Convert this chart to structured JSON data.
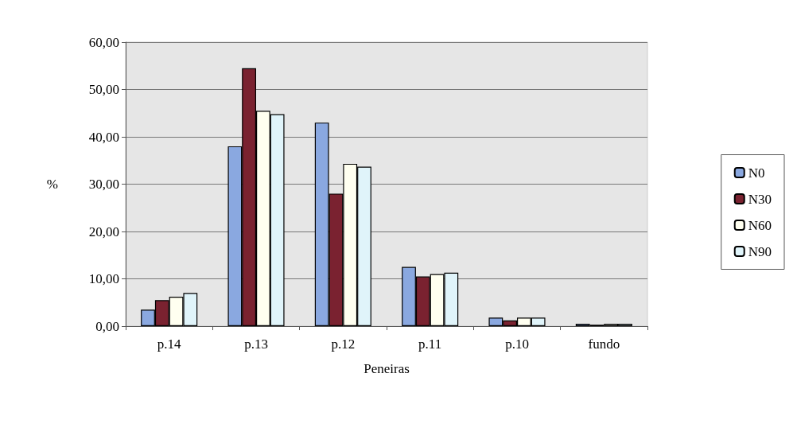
{
  "chart_data": {
    "type": "bar",
    "xlabel": "Peneiras",
    "ylabel": "%",
    "categories": [
      "p.14",
      "p.13",
      "p.12",
      "p.11",
      "p.10",
      "fundo"
    ],
    "series": [
      {
        "name": "N0",
        "color": "#8aa8e0",
        "values": [
          3.5,
          38.0,
          43.0,
          12.5,
          1.8,
          0.5
        ]
      },
      {
        "name": "N30",
        "color": "#7a2230",
        "values": [
          5.5,
          54.5,
          28.0,
          10.5,
          1.2,
          0.3
        ]
      },
      {
        "name": "N60",
        "color": "#fffff0",
        "values": [
          6.2,
          45.5,
          34.3,
          11.0,
          1.8,
          0.5
        ]
      },
      {
        "name": "N90",
        "color": "#e0f4fa",
        "values": [
          7.0,
          44.8,
          33.7,
          11.3,
          1.8,
          0.5
        ]
      }
    ],
    "ylim": [
      0,
      60
    ],
    "yticks": [
      {
        "value": 0,
        "label": "0,00"
      },
      {
        "value": 10,
        "label": "10,00"
      },
      {
        "value": 20,
        "label": "20,00"
      },
      {
        "value": 30,
        "label": "30,00"
      },
      {
        "value": 40,
        "label": "40,00"
      },
      {
        "value": 50,
        "label": "50,00"
      },
      {
        "value": 60,
        "label": "60,00"
      }
    ],
    "grid": "y",
    "legend": "right"
  }
}
